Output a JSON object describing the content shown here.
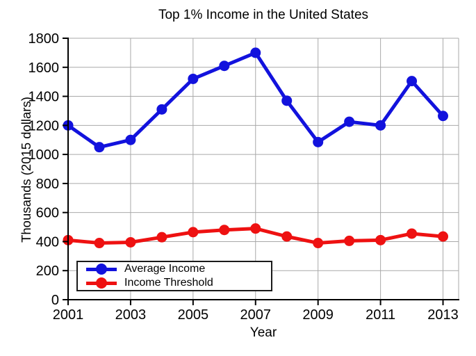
{
  "chart_data": {
    "type": "line",
    "title": "Top 1% Income in the United States",
    "xlabel": "Year",
    "ylabel": "Thousands (2015 dollars)",
    "x": [
      2001,
      2002,
      2003,
      2004,
      2005,
      2006,
      2007,
      2008,
      2009,
      2010,
      2011,
      2012,
      2013
    ],
    "series": [
      {
        "name": "Average Income",
        "color": "#1212dd",
        "values": [
          1200,
          1050,
          1100,
          1310,
          1520,
          1610,
          1700,
          1370,
          1085,
          1225,
          1200,
          1505,
          1265
        ]
      },
      {
        "name": "Income Threshold",
        "color": "#ee1111",
        "values": [
          410,
          390,
          395,
          430,
          465,
          480,
          490,
          435,
          390,
          405,
          410,
          455,
          435
        ]
      }
    ],
    "xlim": [
      2001,
      2013.5
    ],
    "ylim": [
      0,
      1800
    ],
    "xticks": [
      2001,
      2003,
      2005,
      2007,
      2009,
      2011,
      2013
    ],
    "yticks": [
      0,
      200,
      400,
      600,
      800,
      1000,
      1200,
      1400,
      1600,
      1800
    ],
    "grid": true,
    "legend_position": "lower-left",
    "colors": {
      "grid": "#a9a9a9",
      "axis": "#000000",
      "background": "#ffffff"
    }
  }
}
